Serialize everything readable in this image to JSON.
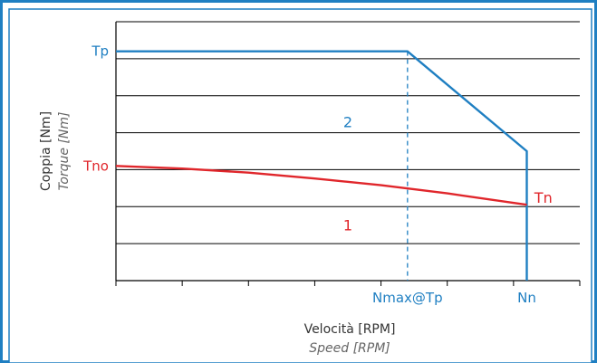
{
  "chart_data": {
    "type": "line",
    "xlabel": "Velocità [RPM]",
    "xlabel_sub": "Speed [RPM]",
    "ylabel": "Coppia [Nm]",
    "ylabel_sub": "Torque [Nm]",
    "x_tick_labels": [
      {
        "label": "Nmax@Tp",
        "x": 4.4
      },
      {
        "label": "Nn",
        "x": 6.2
      }
    ],
    "y_tick_labels": [
      {
        "label": "Tp",
        "y": 6.2,
        "color": "#1f7fc2"
      },
      {
        "label": "Tno",
        "y": 3.1,
        "color": "#e0262b"
      }
    ],
    "xlim": [
      0,
      7
    ],
    "ylim": [
      0,
      7
    ],
    "grid": true,
    "colors": {
      "frame": "#1f7fc2",
      "series_blue": "#1f7fc2",
      "series_red": "#e0262b",
      "grid": "#000000"
    },
    "series": [
      {
        "key": "blue",
        "color": "#1f7fc2",
        "points": [
          [
            0,
            6.2
          ],
          [
            4.4,
            6.2
          ],
          [
            6.2,
            3.5
          ],
          [
            6.2,
            0
          ]
        ]
      },
      {
        "key": "red",
        "color": "#e0262b",
        "points": [
          [
            0,
            3.1
          ],
          [
            1,
            3.03
          ],
          [
            2,
            2.92
          ],
          [
            3,
            2.76
          ],
          [
            4,
            2.58
          ],
          [
            5,
            2.36
          ],
          [
            6.2,
            2.05
          ]
        ]
      }
    ],
    "dashed_marker": {
      "x": 4.4,
      "y_from": 0,
      "y_to": 6.2,
      "color": "#1f7fc2"
    },
    "annotations": [
      {
        "text": "2",
        "x": 3.5,
        "y": 4.3,
        "color": "#1f7fc2"
      },
      {
        "text": "1",
        "x": 3.5,
        "y": 1.5,
        "color": "#e0262b"
      },
      {
        "text": "Tn",
        "x": 6.45,
        "y": 2.25,
        "color": "#e0262b"
      }
    ]
  }
}
